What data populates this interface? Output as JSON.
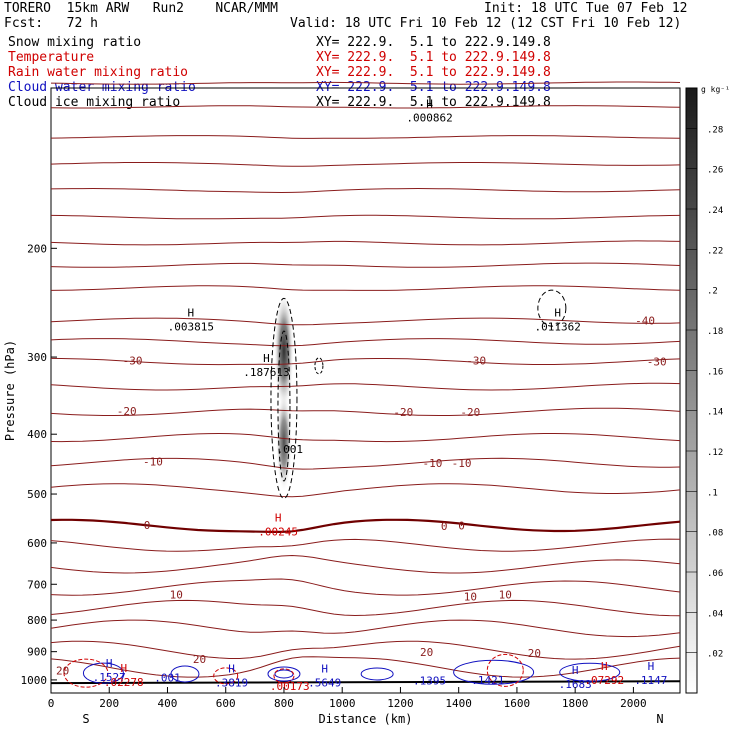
{
  "header": {
    "model": "TORERO  15km ARW   Run2    NCAR/MMM",
    "init": "Init: 18 UTC Tue 07 Feb 12",
    "fcst": "Fcst:   72 h",
    "valid": "Valid: 18 UTC Fri 10 Feb 12 (12 CST Fri 10 Feb 12)"
  },
  "fields": [
    {
      "label": "Snow mixing ratio",
      "xy": "XY= 222.9.  5.1 to 222.9.149.8",
      "color": "#000000"
    },
    {
      "label": "Temperature",
      "xy": "XY= 222.9.  5.1 to 222.9.149.8",
      "color": "#d00000"
    },
    {
      "label": "Rain water mixing ratio",
      "xy": "XY= 222.9.  5.1 to 222.9.149.8",
      "color": "#d00000"
    },
    {
      "label": "Cloud water mixing ratio",
      "xy": "XY= 222.9.  5.1 to 222.9.149.8",
      "color": "#1010c0"
    },
    {
      "label": "Cloud ice mixing ratio",
      "xy": "XY= 222.9.  5.1 to 222.9.149.8",
      "color": "#000000"
    }
  ],
  "chart_data": {
    "type": "contour-cross-section",
    "xlabel": "Distance (km)",
    "ylabel": "Pressure (hPa)",
    "x_ticks": [
      0,
      200,
      400,
      600,
      800,
      1000,
      1200,
      1400,
      1600,
      1800,
      2000
    ],
    "y_ticks": [
      200,
      300,
      400,
      500,
      600,
      700,
      800,
      900,
      1000
    ],
    "xlim": [
      0,
      2160
    ],
    "ylim": [
      1050,
      110
    ],
    "endpoints": {
      "left": "S",
      "right": "N"
    },
    "colorbar": {
      "unit": "g kg⁻¹",
      "ticks": [
        ".02",
        ".04",
        ".06",
        ".08",
        ".1",
        ".12",
        ".14",
        ".16",
        ".18",
        ".2",
        ".22",
        ".24",
        ".26",
        ".28"
      ],
      "range": [
        0,
        0.3
      ]
    },
    "temperature_labels": [
      {
        "text": "-40",
        "x": 2040,
        "p": 262
      },
      {
        "text": "-30",
        "x": 280,
        "p": 304
      },
      {
        "text": "-30",
        "x": 1460,
        "p": 304
      },
      {
        "text": "-30",
        "x": 2080,
        "p": 305
      },
      {
        "text": "-20",
        "x": 260,
        "p": 367
      },
      {
        "text": "-20",
        "x": 1210,
        "p": 368
      },
      {
        "text": "-20",
        "x": 1440,
        "p": 368
      },
      {
        "text": "-10",
        "x": 350,
        "p": 443
      },
      {
        "text": "-10",
        "x": 1310,
        "p": 445
      },
      {
        "text": "-10",
        "x": 1410,
        "p": 445
      },
      {
        "text": "0",
        "x": 330,
        "p": 561
      },
      {
        "text": "0",
        "x": 1350,
        "p": 563
      },
      {
        "text": "0",
        "x": 1410,
        "p": 562
      },
      {
        "text": "10",
        "x": 430,
        "p": 727
      },
      {
        "text": "10",
        "x": 1440,
        "p": 732
      },
      {
        "text": "10",
        "x": 1560,
        "p": 727
      },
      {
        "text": "20",
        "x": 510,
        "p": 925
      },
      {
        "text": "20",
        "x": 1290,
        "p": 901
      },
      {
        "text": "20",
        "x": 1660,
        "p": 905
      },
      {
        "text": "20",
        "x": 40,
        "p": 966
      }
    ],
    "maxima": [
      {
        "mark": "H",
        "value": ".003815",
        "x": 480,
        "p": 262,
        "field": "Snow mixing ratio"
      },
      {
        "mark": "H",
        "value": ".187613",
        "x": 740,
        "p": 310,
        "field": "Cloud ice mixing ratio"
      },
      {
        "mark": "H",
        "value": ".011362",
        "x": 1740,
        "p": 262,
        "field": "Snow mixing ratio"
      },
      {
        "mark": "H",
        "value": ".000862",
        "x": 1300,
        "p": 120,
        "field": "Snow mixing ratio"
      },
      {
        "mark": "",
        "value": ".001",
        "x": 820,
        "p": 413,
        "field": "Cloud ice mixing ratio"
      },
      {
        "mark": "H",
        "value": ".00245",
        "x": 780,
        "p": 562,
        "field": "Rain water mixing ratio"
      },
      {
        "mark": "H",
        "value": ".1527",
        "x": 200,
        "p": 968,
        "field": "Cloud water mixing ratio"
      },
      {
        "mark": "H",
        "value": ".02278",
        "x": 250,
        "p": 985,
        "field": "Rain water mixing ratio"
      },
      {
        "mark": "",
        "value": ".001",
        "x": 400,
        "p": 970,
        "field": "Cloud water mixing ratio"
      },
      {
        "mark": "H",
        "value": ".3819",
        "x": 620,
        "p": 987,
        "field": "Cloud water mixing ratio"
      },
      {
        "mark": "",
        "value": ".00173",
        "x": 820,
        "p": 1000,
        "field": "Rain water mixing ratio"
      },
      {
        "mark": "H",
        "value": ".5649",
        "x": 940,
        "p": 987,
        "field": "Cloud water mixing ratio"
      },
      {
        "mark": "",
        "value": ".1395",
        "x": 1300,
        "p": 980,
        "field": "Cloud water mixing ratio"
      },
      {
        "mark": "",
        "value": ".1421",
        "x": 1500,
        "p": 978,
        "field": "Cloud water mixing ratio"
      },
      {
        "mark": "H",
        "value": ".1683",
        "x": 1800,
        "p": 992,
        "field": "Cloud water mixing ratio"
      },
      {
        "mark": "H",
        "value": ".07292",
        "x": 1900,
        "p": 978,
        "field": "Rain water mixing ratio"
      },
      {
        "mark": "H",
        "value": ".1147",
        "x": 2060,
        "p": 978,
        "field": "Cloud water mixing ratio"
      }
    ]
  }
}
